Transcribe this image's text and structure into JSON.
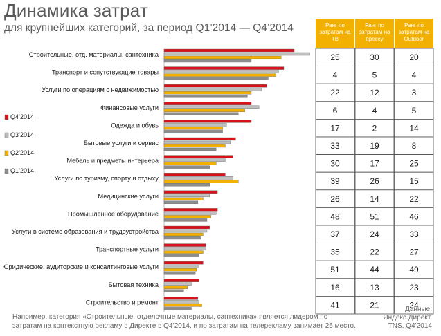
{
  "header": {
    "title": "Динамика затрат",
    "subtitle": "для крупнейших категорий, за период Q1’2014 — Q4’2014"
  },
  "chart_data": {
    "type": "bar",
    "orientation": "horizontal",
    "categories": [
      "Строительные, отд. материалы, сантехника",
      "Транспорт и сопутствующие товары",
      "Услуги по операциям с недвижимостью",
      "Финансовые услуги",
      "Одежда и обувь",
      "Бытовые услуги и сервис",
      "Мебель и предметы интерьера",
      "Услуги по туризму, спорту и отдыху",
      "Медицинские услуги",
      "Промышленное оборудование",
      "Услуги в системе образования и трудоустройства",
      "Транспортные услуги",
      "Юридические, аудиторские и консалтинговые услуги",
      "Бытовая техника",
      "Строительство и ремонт"
    ],
    "series": [
      {
        "name": "Q4’2014",
        "color": "#d7121b",
        "values": [
          1.0,
          0.92,
          0.79,
          0.67,
          0.67,
          0.55,
          0.53,
          0.47,
          0.41,
          0.41,
          0.35,
          0.32,
          0.3,
          0.27,
          0.26
        ]
      },
      {
        "name": "Q3’2014",
        "color": "#bfbfbf",
        "values": [
          1.12,
          0.88,
          0.75,
          0.73,
          0.48,
          0.51,
          0.47,
          0.53,
          0.35,
          0.4,
          0.33,
          0.32,
          0.27,
          0.21,
          0.27
        ]
      },
      {
        "name": "Q2’2014",
        "color": "#f2b000",
        "values": [
          0.9,
          0.86,
          0.67,
          0.62,
          0.45,
          0.47,
          0.4,
          0.57,
          0.3,
          0.36,
          0.3,
          0.3,
          0.25,
          0.18,
          0.29
        ]
      },
      {
        "name": "Q1’2014",
        "color": "#8c8c8c",
        "values": [
          0.67,
          0.8,
          0.64,
          0.57,
          0.45,
          0.4,
          0.35,
          0.35,
          0.26,
          0.33,
          0.28,
          0.27,
          0.24,
          0.15,
          0.21
        ]
      }
    ],
    "xlim": [
      0,
      1.15
    ],
    "legend": "left"
  },
  "table": {
    "headers": [
      "Ранг по затратам на ТВ",
      "Ранг по затратам на прессу",
      "Ранг по затратам на Outdoor"
    ],
    "header_color": "#f2b000",
    "rows": [
      [
        "25",
        "30",
        "20"
      ],
      [
        "4",
        "5",
        "4"
      ],
      [
        "22",
        "12",
        "3"
      ],
      [
        "6",
        "4",
        "5"
      ],
      [
        "17",
        "2",
        "14"
      ],
      [
        "33",
        "19",
        "8"
      ],
      [
        "30",
        "17",
        "25"
      ],
      [
        "39",
        "26",
        "15"
      ],
      [
        "26",
        "14",
        "22"
      ],
      [
        "48",
        "51",
        "46"
      ],
      [
        "37",
        "24",
        "33"
      ],
      [
        "35",
        "22",
        "27"
      ],
      [
        "51",
        "44",
        "49"
      ],
      [
        "16",
        "13",
        "23"
      ],
      [
        "41",
        "21",
        "24"
      ]
    ]
  },
  "footnote": "Например, категория «Строительные, отделочные материалы, сантехника» является лидером по затратам на контекстную рекламу в Директе в Q4’2014, и по затратам на телерекламу занимает 25 место.",
  "source": {
    "line1": "Данные:",
    "line2": "Яндекс.Директ,",
    "line3": "TNS, Q4’2014"
  }
}
